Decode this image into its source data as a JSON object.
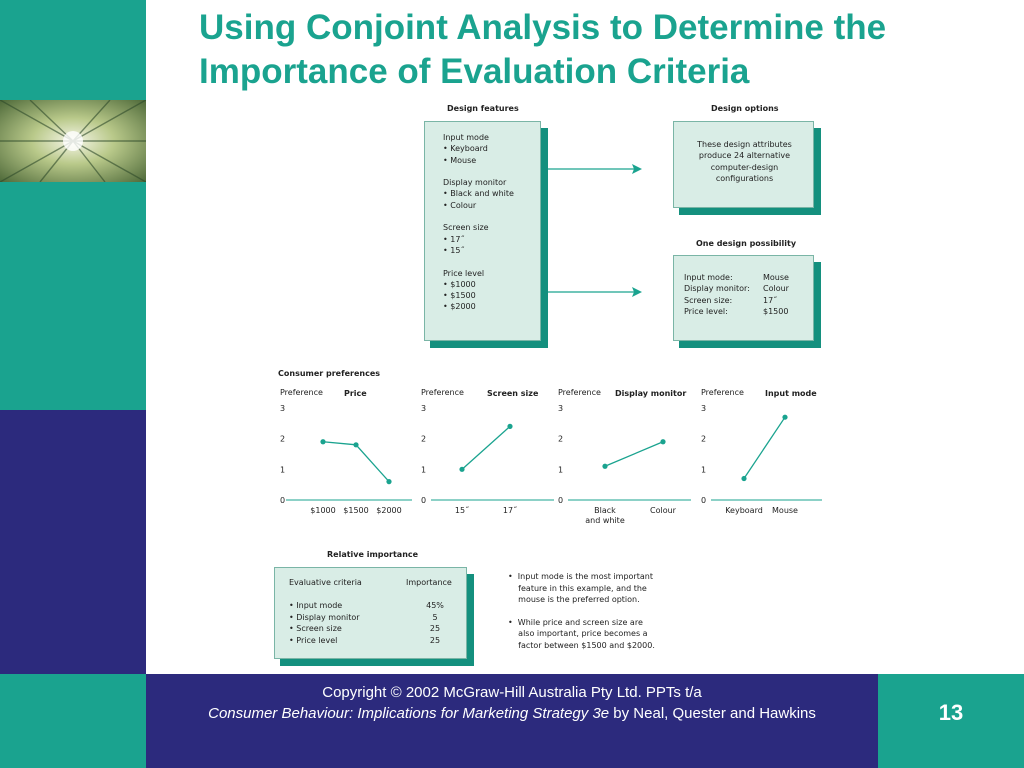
{
  "title": "Using Conjoint Analysis to Determine the Importance of Evaluation Criteria",
  "figure": {
    "design_features_heading": "Design features",
    "design_options_heading": "Design options",
    "one_design_heading": "One design possibility",
    "design_features_lines": [
      "Input mode",
      "• Keyboard",
      "• Mouse",
      "",
      "Display monitor",
      "• Black and white",
      "• Colour",
      "",
      "Screen size",
      "• 17˝",
      "• 15˝",
      "",
      "Price level",
      "• $1000",
      "• $1500",
      "• $2000"
    ],
    "design_options_lines": [
      "These design attributes",
      "produce 24 alternative",
      "computer-design",
      "configurations"
    ],
    "one_design_rows": [
      {
        "k": "Input mode:",
        "v": "Mouse"
      },
      {
        "k": "Display monitor:",
        "v": "Colour"
      },
      {
        "k": "Screen size:",
        "v": "17˝"
      },
      {
        "k": "Price level:",
        "v": "$1500"
      }
    ],
    "consumer_prefs_heading": "Consumer preferences",
    "relative_importance_heading": "Relative importance",
    "criteria_header": "Evaluative criteria",
    "importance_header": "Importance",
    "importance_rows": [
      {
        "criterion": "• Input mode",
        "value": "45%"
      },
      {
        "criterion": "• Display monitor",
        "value": "5"
      },
      {
        "criterion": "• Screen size",
        "value": "25"
      },
      {
        "criterion": "• Price level",
        "value": "25"
      }
    ],
    "notes": [
      [
        "•  Input mode is the most important",
        "    feature in this example, and the",
        "    mouse is the preferred option."
      ],
      [
        "•  While price and screen size are",
        "    also important, price becomes a",
        "    factor between $1500 and $2000."
      ]
    ]
  },
  "chart_data": [
    {
      "type": "line",
      "title": "Price",
      "ylabel": "Preference",
      "categories": [
        "$1000",
        "$1500",
        "$2000"
      ],
      "values": [
        1.9,
        1.8,
        0.6
      ],
      "ylim": [
        0,
        3
      ],
      "yticks": [
        "0",
        "1",
        "2",
        "3"
      ]
    },
    {
      "type": "line",
      "title": "Screen size",
      "ylabel": "Preference",
      "categories": [
        "15˝",
        "17˝"
      ],
      "values": [
        1.0,
        2.4
      ],
      "ylim": [
        0,
        3
      ],
      "yticks": [
        "0",
        "1",
        "2",
        "3"
      ]
    },
    {
      "type": "line",
      "title": "Display monitor",
      "ylabel": "Preference",
      "categories": [
        "Black\nand white",
        "Colour"
      ],
      "values": [
        1.1,
        1.9
      ],
      "ylim": [
        0,
        3
      ],
      "yticks": [
        "0",
        "1",
        "2",
        "3"
      ]
    },
    {
      "type": "line",
      "title": "Input mode",
      "ylabel": "Preference",
      "categories": [
        "Keyboard",
        "Mouse"
      ],
      "values": [
        0.7,
        2.7
      ],
      "ylim": [
        0,
        3
      ],
      "yticks": [
        "0",
        "1",
        "2",
        "3"
      ]
    }
  ],
  "footer": {
    "copyright": "Copyright © 2002 McGraw-Hill Australia Pty Ltd. PPTs t/a",
    "book_title": "Consumer Behaviour: Implications for Marketing Strategy 3e",
    "authors": " by Neal, Quester and Hawkins",
    "page_number": "13"
  },
  "colors": {
    "teal": "#1aa38f",
    "navy": "#2c2a7d",
    "box_fill": "#d9ede6",
    "box_shadow": "#14907e"
  }
}
